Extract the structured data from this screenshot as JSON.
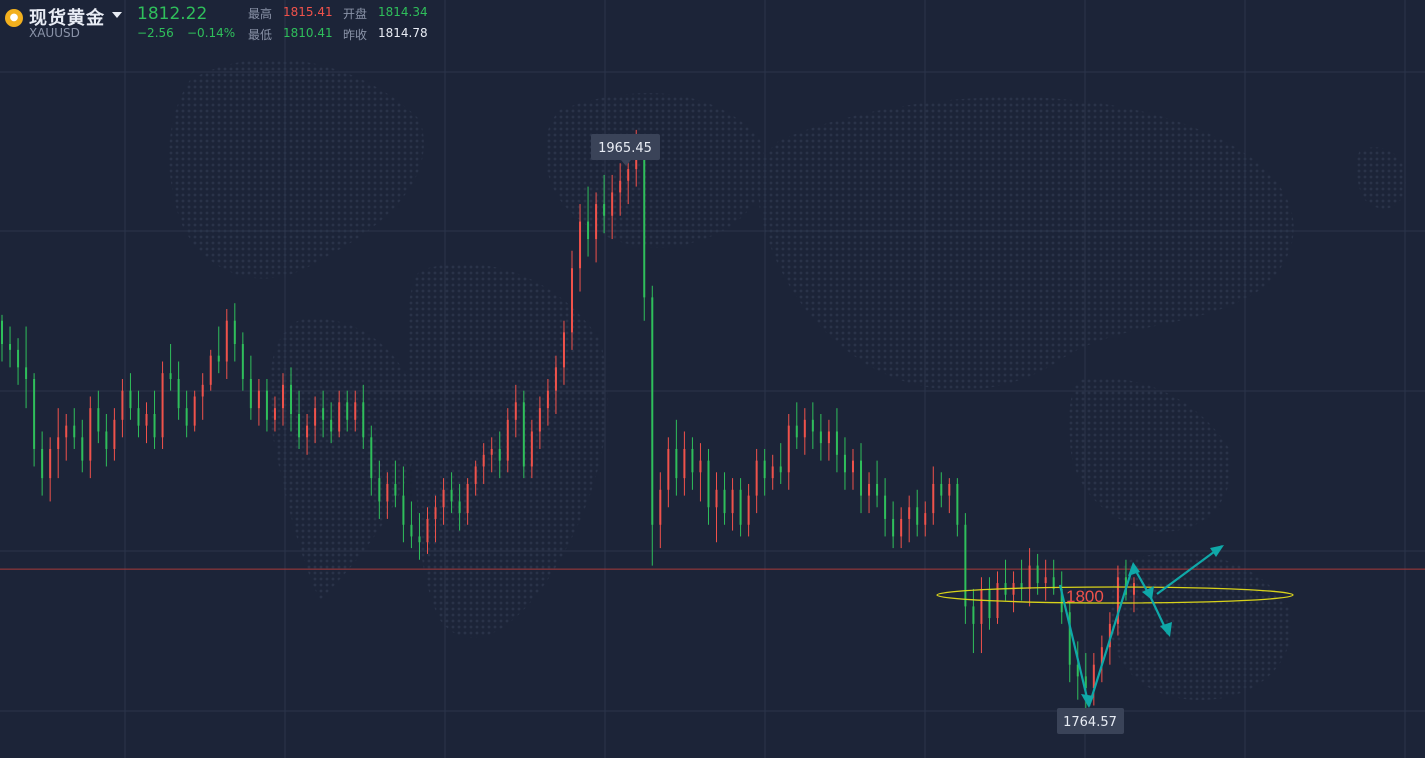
{
  "header": {
    "name": "现货黄金",
    "code": "XAUUSD",
    "last": "1812.22",
    "change": "−2.56",
    "change_pct": "−0.14%",
    "stats": [
      {
        "label": "最高",
        "value": "1815.41",
        "color": "red"
      },
      {
        "label": "开盘",
        "value": "1814.34",
        "color": "green"
      },
      {
        "label": "最低",
        "value": "1810.41",
        "color": "green"
      },
      {
        "label": "昨收",
        "value": "1814.78",
        "color": "white"
      }
    ]
  },
  "colors": {
    "background": "#1c2438",
    "up": "#f0524b",
    "down": "#2fbf5b",
    "annotation_arrow": "#0fa8a8",
    "ellipse": "#d8d21a",
    "level_text": "#f0524b",
    "ref_line": "#a83a3a"
  },
  "chart_data": {
    "type": "candlestick",
    "title": "",
    "grid": true,
    "markers": {
      "high_label": "1965.45",
      "low_label": "1764.57"
    },
    "annotations": {
      "level_label": "1800",
      "ellipse_around_level": true,
      "arrows": 4
    },
    "reference_line": 1814.78,
    "ylim": [
      1750,
      2010
    ],
    "approx_candles": [
      [
        1900,
        1902,
        1886,
        1892
      ],
      [
        1892,
        1898,
        1884,
        1890
      ],
      [
        1890,
        1894,
        1878,
        1884
      ],
      [
        1884,
        1898,
        1870,
        1880
      ],
      [
        1880,
        1882,
        1850,
        1856
      ],
      [
        1856,
        1862,
        1840,
        1846
      ],
      [
        1846,
        1860,
        1838,
        1856
      ],
      [
        1856,
        1870,
        1846,
        1860
      ],
      [
        1860,
        1868,
        1852,
        1864
      ],
      [
        1864,
        1870,
        1856,
        1860
      ],
      [
        1860,
        1866,
        1848,
        1852
      ],
      [
        1852,
        1874,
        1846,
        1870
      ],
      [
        1870,
        1876,
        1858,
        1862
      ],
      [
        1862,
        1868,
        1850,
        1856
      ],
      [
        1856,
        1870,
        1852,
        1866
      ],
      [
        1866,
        1880,
        1860,
        1876
      ],
      [
        1876,
        1882,
        1866,
        1870
      ],
      [
        1870,
        1876,
        1860,
        1864
      ],
      [
        1864,
        1872,
        1858,
        1868
      ],
      [
        1868,
        1876,
        1856,
        1860
      ],
      [
        1860,
        1886,
        1856,
        1882
      ],
      [
        1882,
        1892,
        1876,
        1880
      ],
      [
        1880,
        1886,
        1866,
        1870
      ],
      [
        1870,
        1876,
        1860,
        1864
      ],
      [
        1864,
        1876,
        1862,
        1874
      ],
      [
        1874,
        1882,
        1866,
        1878
      ],
      [
        1878,
        1890,
        1876,
        1888
      ],
      [
        1888,
        1898,
        1882,
        1886
      ],
      [
        1886,
        1904,
        1880,
        1900
      ],
      [
        1900,
        1906,
        1886,
        1892
      ],
      [
        1892,
        1896,
        1876,
        1880
      ],
      [
        1880,
        1888,
        1866,
        1870
      ],
      [
        1870,
        1880,
        1864,
        1876
      ],
      [
        1876,
        1880,
        1862,
        1866
      ],
      [
        1866,
        1874,
        1862,
        1870
      ],
      [
        1870,
        1882,
        1864,
        1878
      ],
      [
        1878,
        1884,
        1862,
        1868
      ],
      [
        1868,
        1876,
        1856,
        1860
      ],
      [
        1860,
        1868,
        1854,
        1864
      ],
      [
        1864,
        1874,
        1858,
        1870
      ],
      [
        1870,
        1876,
        1860,
        1866
      ],
      [
        1866,
        1872,
        1858,
        1862
      ],
      [
        1862,
        1876,
        1860,
        1872
      ],
      [
        1872,
        1876,
        1862,
        1866
      ],
      [
        1866,
        1876,
        1862,
        1872
      ],
      [
        1872,
        1878,
        1856,
        1860
      ],
      [
        1860,
        1864,
        1840,
        1846
      ],
      [
        1846,
        1852,
        1832,
        1838
      ],
      [
        1838,
        1848,
        1832,
        1844
      ],
      [
        1844,
        1852,
        1836,
        1840
      ],
      [
        1840,
        1850,
        1824,
        1830
      ],
      [
        1830,
        1838,
        1822,
        1826
      ],
      [
        1826,
        1834,
        1818,
        1824
      ],
      [
        1824,
        1836,
        1820,
        1832
      ],
      [
        1832,
        1840,
        1824,
        1836
      ],
      [
        1836,
        1846,
        1830,
        1842
      ],
      [
        1842,
        1848,
        1834,
        1838
      ],
      [
        1838,
        1844,
        1828,
        1834
      ],
      [
        1834,
        1846,
        1830,
        1844
      ],
      [
        1844,
        1852,
        1840,
        1850
      ],
      [
        1850,
        1858,
        1844,
        1854
      ],
      [
        1854,
        1860,
        1848,
        1856
      ],
      [
        1856,
        1862,
        1846,
        1852
      ],
      [
        1852,
        1870,
        1848,
        1866
      ],
      [
        1866,
        1878,
        1860,
        1872
      ],
      [
        1872,
        1876,
        1846,
        1850
      ],
      [
        1850,
        1866,
        1846,
        1862
      ],
      [
        1862,
        1874,
        1856,
        1870
      ],
      [
        1870,
        1880,
        1864,
        1876
      ],
      [
        1876,
        1888,
        1868,
        1884
      ],
      [
        1884,
        1900,
        1878,
        1896
      ],
      [
        1896,
        1924,
        1890,
        1918
      ],
      [
        1918,
        1940,
        1910,
        1934
      ],
      [
        1934,
        1946,
        1922,
        1928
      ],
      [
        1928,
        1944,
        1920,
        1940
      ],
      [
        1940,
        1950,
        1930,
        1936
      ],
      [
        1936,
        1950,
        1928,
        1944
      ],
      [
        1944,
        1954,
        1936,
        1948
      ],
      [
        1948,
        1960,
        1940,
        1952
      ],
      [
        1952,
        1965.45,
        1946,
        1958
      ],
      [
        1958,
        1960,
        1900,
        1908
      ],
      [
        1908,
        1912,
        1816,
        1830
      ],
      [
        1830,
        1848,
        1822,
        1842
      ],
      [
        1842,
        1860,
        1836,
        1856
      ],
      [
        1856,
        1866,
        1840,
        1846
      ],
      [
        1846,
        1862,
        1840,
        1856
      ],
      [
        1856,
        1860,
        1842,
        1848
      ],
      [
        1848,
        1858,
        1838,
        1852
      ],
      [
        1852,
        1856,
        1830,
        1836
      ],
      [
        1836,
        1848,
        1824,
        1842
      ],
      [
        1842,
        1848,
        1830,
        1834
      ],
      [
        1834,
        1846,
        1828,
        1842
      ],
      [
        1842,
        1846,
        1826,
        1830
      ],
      [
        1830,
        1844,
        1826,
        1840
      ],
      [
        1840,
        1856,
        1834,
        1852
      ],
      [
        1852,
        1856,
        1840,
        1846
      ],
      [
        1846,
        1854,
        1842,
        1850
      ],
      [
        1850,
        1858,
        1844,
        1848
      ],
      [
        1848,
        1868,
        1842,
        1864
      ],
      [
        1864,
        1872,
        1856,
        1860
      ],
      [
        1860,
        1870,
        1854,
        1866
      ],
      [
        1866,
        1872,
        1856,
        1862
      ],
      [
        1862,
        1868,
        1852,
        1858
      ],
      [
        1858,
        1866,
        1852,
        1862
      ],
      [
        1862,
        1870,
        1848,
        1854
      ],
      [
        1854,
        1860,
        1842,
        1848
      ],
      [
        1848,
        1856,
        1842,
        1852
      ],
      [
        1852,
        1858,
        1834,
        1840
      ],
      [
        1840,
        1848,
        1834,
        1844
      ],
      [
        1844,
        1852,
        1836,
        1840
      ],
      [
        1840,
        1846,
        1826,
        1832
      ],
      [
        1832,
        1838,
        1822,
        1826
      ],
      [
        1826,
        1836,
        1822,
        1832
      ],
      [
        1832,
        1840,
        1824,
        1836
      ],
      [
        1836,
        1842,
        1826,
        1830
      ],
      [
        1830,
        1838,
        1826,
        1834
      ],
      [
        1834,
        1850,
        1830,
        1844
      ],
      [
        1844,
        1848,
        1836,
        1840
      ],
      [
        1840,
        1846,
        1834,
        1844
      ],
      [
        1844,
        1846,
        1826,
        1830
      ],
      [
        1830,
        1834,
        1796,
        1802
      ],
      [
        1802,
        1808,
        1786,
        1796
      ],
      [
        1796,
        1812,
        1786,
        1808
      ],
      [
        1808,
        1812,
        1794,
        1798
      ],
      [
        1798,
        1814,
        1796,
        1810
      ],
      [
        1810,
        1818,
        1804,
        1806
      ],
      [
        1806,
        1814,
        1800,
        1810
      ],
      [
        1810,
        1818,
        1804,
        1808
      ],
      [
        1808,
        1822,
        1802,
        1816
      ],
      [
        1816,
        1820,
        1806,
        1810
      ],
      [
        1810,
        1818,
        1804,
        1812
      ],
      [
        1812,
        1818,
        1806,
        1808
      ],
      [
        1808,
        1814,
        1796,
        1800
      ],
      [
        1800,
        1804,
        1776,
        1782
      ],
      [
        1782,
        1790,
        1770,
        1778
      ],
      [
        1778,
        1786,
        1764.57,
        1774
      ],
      [
        1774,
        1786,
        1768,
        1782
      ],
      [
        1782,
        1792,
        1776,
        1788
      ],
      [
        1788,
        1800,
        1782,
        1796
      ],
      [
        1796,
        1816,
        1792,
        1812
      ],
      [
        1812,
        1818,
        1804,
        1806
      ],
      [
        1806,
        1812,
        1800,
        1810
      ]
    ]
  }
}
